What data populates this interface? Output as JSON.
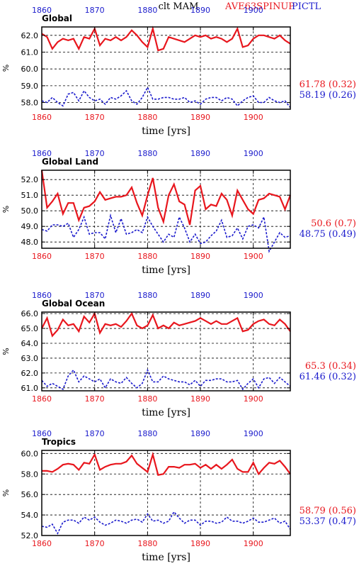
{
  "header": {
    "title": "clt MAM",
    "label_red": "AVE63SPINUP",
    "label_blue": "PICTL"
  },
  "colors": {
    "red": "#e8161d",
    "blue": "#1a1acc",
    "grid": "#000000"
  },
  "chart_data": [
    {
      "type": "line",
      "title": "Global",
      "xlabel": "time [yrs]",
      "ylabel": "%",
      "xlim": [
        1860,
        1907
      ],
      "ylim": [
        57.6,
        62.5
      ],
      "yticks": [
        "58.0",
        "59.0",
        "60.0",
        "61.0",
        "62.0"
      ],
      "xticks": [
        "1860",
        "1870",
        "1880",
        "1890",
        "1900"
      ],
      "grid": true,
      "series": [
        {
          "name": "AVE63SPINUP",
          "color": "red",
          "values": [
            62.1,
            61.9,
            61.2,
            61.6,
            61.8,
            61.7,
            61.8,
            61.2,
            61.9,
            61.8,
            62.4,
            61.4,
            61.8,
            61.7,
            61.9,
            61.7,
            61.9,
            62.3,
            62.0,
            61.6,
            61.3,
            62.4,
            61.1,
            61.2,
            61.9,
            61.8,
            61.7,
            61.6,
            61.8,
            62.0,
            61.9,
            62.0,
            61.8,
            61.9,
            61.8,
            61.6,
            61.8,
            62.4,
            61.3,
            61.4,
            61.8,
            62.0,
            62.0,
            61.9,
            61.8,
            62.0,
            61.7,
            61.5
          ]
        },
        {
          "name": "PICTL",
          "color": "blue",
          "values": [
            58.1,
            58.0,
            58.3,
            58.0,
            57.8,
            58.5,
            58.6,
            58.1,
            58.7,
            58.3,
            58.1,
            58.2,
            57.9,
            58.3,
            58.2,
            58.4,
            58.7,
            58.1,
            57.9,
            58.3,
            58.9,
            58.2,
            58.2,
            58.3,
            58.3,
            58.2,
            58.2,
            58.3,
            58.0,
            58.1,
            57.9,
            58.2,
            58.3,
            58.3,
            58.1,
            58.3,
            58.2,
            57.8,
            58.1,
            58.3,
            58.4,
            58.0,
            58.0,
            58.3,
            58.1,
            58.0,
            58.1,
            57.7
          ]
        }
      ],
      "stats": {
        "red": "61.78 (0.32)",
        "blue": "58.19 (0.26)"
      }
    },
    {
      "type": "line",
      "title": "Global Land",
      "xlabel": "time [yrs]",
      "ylabel": "%",
      "xlim": [
        1860,
        1907
      ],
      "ylim": [
        47.6,
        52.6
      ],
      "yticks": [
        "48.0",
        "49.0",
        "50.0",
        "51.0",
        "52.0"
      ],
      "xticks": [
        "1860",
        "1870",
        "1880",
        "1890",
        "1900"
      ],
      "grid": true,
      "series": [
        {
          "name": "AVE63SPINUP",
          "color": "red",
          "values": [
            52.6,
            50.2,
            50.6,
            51.1,
            49.8,
            50.5,
            50.5,
            49.4,
            50.2,
            50.3,
            50.6,
            51.2,
            50.7,
            50.8,
            50.9,
            50.9,
            51.0,
            51.5,
            50.5,
            49.7,
            51.0,
            52.1,
            50.2,
            49.3,
            51.0,
            51.7,
            50.6,
            50.4,
            49.1,
            51.3,
            51.6,
            50.1,
            50.4,
            50.3,
            51.1,
            50.7,
            49.7,
            51.3,
            50.7,
            50.1,
            49.8,
            50.7,
            50.8,
            51.1,
            51.0,
            50.9,
            50.1,
            51.0
          ]
        },
        {
          "name": "PICTL",
          "color": "blue",
          "values": [
            48.8,
            48.7,
            49.1,
            49.1,
            49.0,
            49.2,
            48.3,
            48.8,
            49.6,
            48.5,
            48.6,
            48.6,
            48.2,
            49.7,
            48.6,
            49.5,
            48.5,
            48.6,
            48.8,
            48.6,
            49.6,
            49.0,
            48.5,
            48.0,
            48.5,
            48.3,
            49.6,
            48.9,
            48.0,
            48.5,
            47.9,
            48.0,
            48.4,
            48.7,
            49.4,
            48.3,
            48.4,
            48.9,
            48.2,
            49.0,
            49.1,
            48.9,
            49.6,
            47.4,
            48.0,
            48.6,
            48.3,
            48.4
          ]
        }
      ],
      "stats": {
        "red": "50.6 (0.7)",
        "blue": "48.75 (0.49)"
      }
    },
    {
      "type": "line",
      "title": "Global Ocean",
      "xlabel": "time [yrs]",
      "ylabel": "%",
      "xlim": [
        1860,
        1907
      ],
      "ylim": [
        60.8,
        66.1
      ],
      "yticks": [
        "61.0",
        "62.0",
        "63.0",
        "64.0",
        "65.0",
        "66.0"
      ],
      "xticks": [
        "1860",
        "1870",
        "1880",
        "1890",
        "1900"
      ],
      "grid": true,
      "series": [
        {
          "name": "AVE63SPINUP",
          "color": "red",
          "values": [
            65.0,
            65.7,
            64.5,
            64.9,
            65.6,
            65.2,
            65.3,
            64.8,
            65.8,
            65.4,
            66.0,
            64.7,
            65.3,
            65.2,
            65.3,
            65.1,
            65.5,
            66.0,
            65.2,
            65.0,
            65.2,
            65.9,
            65.0,
            65.2,
            65.0,
            65.4,
            65.2,
            65.3,
            65.4,
            65.5,
            65.7,
            65.5,
            65.3,
            65.5,
            65.3,
            65.3,
            65.5,
            65.7,
            64.8,
            64.9,
            65.3,
            65.5,
            65.6,
            65.3,
            65.2,
            65.6,
            65.3,
            64.8
          ]
        },
        {
          "name": "PICTL",
          "color": "blue",
          "values": [
            61.5,
            61.1,
            61.3,
            61.1,
            60.9,
            61.8,
            62.2,
            61.4,
            61.8,
            61.6,
            61.4,
            61.6,
            61.0,
            61.6,
            61.4,
            61.3,
            61.7,
            61.3,
            61.0,
            61.3,
            62.2,
            61.4,
            61.4,
            61.8,
            61.6,
            61.5,
            61.4,
            61.4,
            61.2,
            61.5,
            61.1,
            61.5,
            61.5,
            61.6,
            61.6,
            61.4,
            61.4,
            61.5,
            60.9,
            61.3,
            61.6,
            61.0,
            61.6,
            61.7,
            61.3,
            61.7,
            61.4,
            61.1
          ]
        }
      ],
      "stats": {
        "red": "65.3 (0.34)",
        "blue": "61.46 (0.32)"
      }
    },
    {
      "type": "line",
      "title": "Tropics",
      "xlabel": "time [yrs]",
      "ylabel": "%",
      "xlim": [
        1860,
        1907
      ],
      "ylim": [
        52.0,
        60.3
      ],
      "yticks": [
        "52.0",
        "54.0",
        "56.0",
        "58.0",
        "60.0"
      ],
      "xticks": [
        "1860",
        "1870",
        "1880",
        "1890",
        "1900"
      ],
      "grid": true,
      "series": [
        {
          "name": "AVE63SPINUP",
          "color": "red",
          "values": [
            58.3,
            58.3,
            58.2,
            58.5,
            58.9,
            59.0,
            58.9,
            58.4,
            59.1,
            59.0,
            59.9,
            58.4,
            58.7,
            58.9,
            59.0,
            59.0,
            59.2,
            59.8,
            59.0,
            58.6,
            58.2,
            59.9,
            57.9,
            58.0,
            58.7,
            58.7,
            58.6,
            58.9,
            58.9,
            59.0,
            58.6,
            58.9,
            58.5,
            58.9,
            58.5,
            58.9,
            59.4,
            58.5,
            58.2,
            58.2,
            59.1,
            58.0,
            58.6,
            59.1,
            59.0,
            59.3,
            58.7,
            58.0
          ]
        },
        {
          "name": "PICTL",
          "color": "blue",
          "values": [
            52.9,
            52.8,
            53.1,
            52.2,
            53.3,
            53.5,
            53.5,
            53.2,
            53.8,
            53.5,
            53.8,
            53.3,
            53.0,
            53.2,
            53.5,
            53.4,
            53.2,
            53.5,
            53.6,
            53.3,
            54.1,
            53.4,
            53.5,
            53.2,
            53.4,
            54.3,
            53.7,
            53.2,
            53.5,
            53.5,
            53.0,
            53.4,
            53.4,
            53.2,
            53.3,
            53.8,
            53.4,
            53.4,
            53.2,
            53.4,
            53.7,
            53.3,
            53.3,
            53.5,
            53.7,
            53.2,
            53.4,
            52.6
          ]
        }
      ],
      "stats": {
        "red": "58.79 (0.56)",
        "blue": "53.37 (0.47)"
      }
    }
  ]
}
